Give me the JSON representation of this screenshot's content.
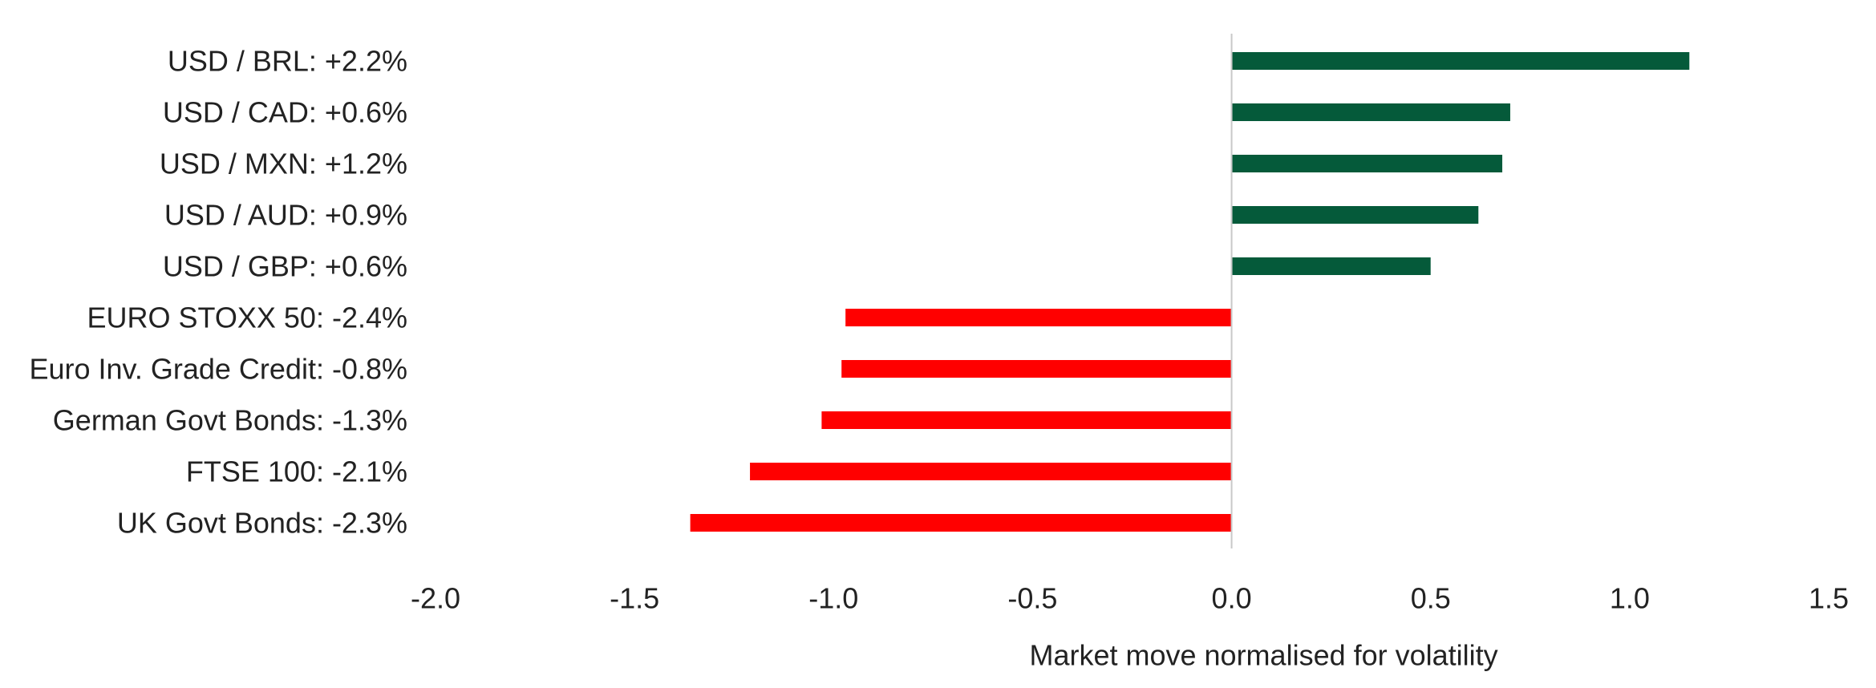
{
  "chart_data": {
    "type": "bar",
    "orientation": "horizontal",
    "title": "",
    "xlabel": "Market move normalised for volatility",
    "ylabel": "",
    "xlim": [
      -2.0,
      1.5
    ],
    "xticks": [
      -2.0,
      -1.5,
      -1.0,
      -0.5,
      0.0,
      0.5,
      1.0,
      1.5
    ],
    "xtick_labels": [
      "-2.0",
      "-1.5",
      "-1.0",
      "-0.5",
      "0.0",
      "0.5",
      "1.0",
      "1.5"
    ],
    "grid": false,
    "legend": "none",
    "categories": [
      "USD / BRL: +2.2%",
      "USD / CAD: +0.6%",
      "USD / MXN: +1.2%",
      "USD / AUD: +0.9%",
      "USD / GBP: +0.6%",
      "EURO STOXX 50: -2.4%",
      "Euro Inv. Grade Credit: -0.8%",
      "German Govt Bonds: -1.3%",
      "FTSE 100: -2.1%",
      "UK Govt Bonds: -2.3%"
    ],
    "values": [
      1.15,
      0.7,
      0.68,
      0.62,
      0.5,
      -0.97,
      -0.98,
      -1.03,
      -1.21,
      -1.36
    ],
    "colors": {
      "positive": "#055a3a",
      "negative": "#ff0000",
      "zero_line": "#c8c8c8",
      "text": "#222222"
    }
  }
}
